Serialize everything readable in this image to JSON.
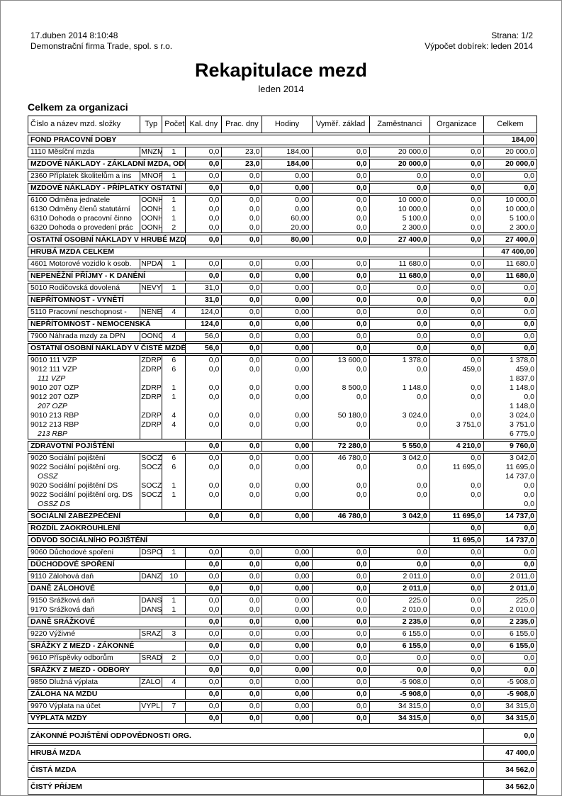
{
  "header": {
    "datetime": "17.duben 2014  8:10:48",
    "page_label": "Strana: 1/2",
    "company": "Demonstrační firma Trade, spol. s r.o.",
    "calc_label": "Výpočet dobírek: leden 2014"
  },
  "title": "Rekapitulace mezd",
  "subtitle": "leden 2014",
  "section_title": "Celkem za organizaci",
  "table": {
    "columns": [
      "Číslo a název mzd. složky",
      "Typ",
      "Počet",
      "Kal. dny",
      "Prac. dny",
      "Hodiny",
      "Vyměř. základ",
      "Zaměstnanci",
      "Organizace",
      "Celkem"
    ],
    "blocks": [
      {
        "type": "section",
        "name": "FOND PRACOVNÍ DOBY",
        "organizace": "",
        "celkem": "184,00"
      },
      {
        "type": "detail",
        "rows": [
          {
            "style": "normal",
            "cells": [
              "1110 Měsíční mzda",
              "MNZM",
              "1",
              "0,0",
              "23,0",
              "184,00",
              "0,0",
              "20 000,0",
              "0,0",
              "20 000,0"
            ]
          }
        ]
      },
      {
        "type": "total",
        "name": "MZDOVÉ NÁKLADY - ZÁKLADNÍ MZDA, ODPR",
        "values": [
          "0,0",
          "23,0",
          "184,00",
          "0,0",
          "20 000,0",
          "0,0",
          "20 000,0"
        ]
      },
      {
        "type": "detail",
        "rows": [
          {
            "style": "normal",
            "cells": [
              "2360 Příplatek školitelům a ins",
              "MNOP",
              "1",
              "0,0",
              "0,0",
              "0,00",
              "0,0",
              "0,0",
              "0,0",
              "0,0"
            ]
          }
        ]
      },
      {
        "type": "total",
        "name": "MZDOVÉ NÁKLADY - PŘÍPLATKY OSTATNÍ",
        "values": [
          "0,0",
          "0,0",
          "0,00",
          "0,0",
          "0,0",
          "0,0",
          "0,0"
        ]
      },
      {
        "type": "detail",
        "rows": [
          {
            "style": "normal",
            "cells": [
              "6100 Odměna jednatele",
              "OONH",
              "1",
              "0,0",
              "0,0",
              "0,00",
              "0,0",
              "10 000,0",
              "0,0",
              "10 000,0"
            ]
          },
          {
            "style": "normal",
            "cells": [
              "6130 Odměny členů statutární",
              "OONH",
              "1",
              "0,0",
              "0,0",
              "0,00",
              "0,0",
              "10 000,0",
              "0,0",
              "10 000,0"
            ]
          },
          {
            "style": "normal",
            "cells": [
              "6310 Dohoda o pracovní činno",
              "OONH",
              "1",
              "0,0",
              "0,0",
              "60,00",
              "0,0",
              "5 100,0",
              "0,0",
              "5 100,0"
            ]
          },
          {
            "style": "normal",
            "cells": [
              "6320 Dohoda o provedení prác",
              "OONH",
              "2",
              "0,0",
              "0,0",
              "20,00",
              "0,0",
              "2 300,0",
              "0,0",
              "2 300,0"
            ]
          }
        ]
      },
      {
        "type": "total",
        "name": "OSTATNÍ OSOBNÍ NÁKLADY V HRUBÉ MZDĚ",
        "values": [
          "0,0",
          "0,0",
          "80,00",
          "0,0",
          "27 400,0",
          "0,0",
          "27 400,0"
        ]
      },
      {
        "type": "section",
        "name": "HRUBÁ MZDA CELKEM",
        "organizace": "",
        "celkem": "47 400,00"
      },
      {
        "type": "detail",
        "rows": [
          {
            "style": "normal",
            "cells": [
              "4601 Motorové vozidlo k osob.",
              "NPDA",
              "1",
              "0,0",
              "0,0",
              "0,00",
              "0,0",
              "11 680,0",
              "0,0",
              "11 680,0"
            ]
          }
        ]
      },
      {
        "type": "total",
        "name": "NEPENĚŽNÍ PŘÍJMY - K DANĚNÍ",
        "values": [
          "0,0",
          "0,0",
          "0,00",
          "0,0",
          "11 680,0",
          "0,0",
          "11 680,0"
        ]
      },
      {
        "type": "detail",
        "rows": [
          {
            "style": "normal",
            "cells": [
              "5010 Rodičovská dovolená",
              "NEVY",
              "1",
              "31,0",
              "0,0",
              "0,00",
              "0,0",
              "0,0",
              "0,0",
              "0,0"
            ]
          }
        ]
      },
      {
        "type": "total",
        "name": "NEPŘÍTOMNOST - VYNĚTÍ",
        "values": [
          "31,0",
          "0,0",
          "0,00",
          "0,0",
          "0,0",
          "0,0",
          "0,0"
        ]
      },
      {
        "type": "detail",
        "rows": [
          {
            "style": "normal",
            "cells": [
              "5110 Pracovní neschopnost - ",
              "NENE",
              "4",
              "124,0",
              "0,0",
              "0,00",
              "0,0",
              "0,0",
              "0,0",
              "0,0"
            ]
          }
        ]
      },
      {
        "type": "total",
        "name": "NEPŘÍTOMNOST - NEMOCENSKÁ",
        "values": [
          "124,0",
          "0,0",
          "0,00",
          "0,0",
          "0,0",
          "0,0",
          "0,0"
        ]
      },
      {
        "type": "detail",
        "rows": [
          {
            "style": "normal",
            "cells": [
              "7900 Náhrada mzdy za DPN",
              "OONC",
              "4",
              "56,0",
              "0,0",
              "0,00",
              "0,0",
              "0,0",
              "0,0",
              "0,0"
            ]
          }
        ]
      },
      {
        "type": "total",
        "name": "OSTATNÍ OSOBNÍ NÁKLADY V ČISTÉ MZDĚ",
        "values": [
          "56,0",
          "0,0",
          "0,00",
          "0,0",
          "0,0",
          "0,0",
          "0,0"
        ]
      },
      {
        "type": "detail",
        "rows": [
          {
            "style": "normal",
            "cells": [
              "9010 111 VZP",
              "ZDRP",
              "6",
              "0,0",
              "0,0",
              "0,00",
              "13 600,0",
              "1 378,0",
              "0,0",
              "1 378,0"
            ]
          },
          {
            "style": "normal",
            "cells": [
              "9012 111 VZP",
              "ZDRP",
              "6",
              "0,0",
              "0,0",
              "0,00",
              "0,0",
              "0,0",
              "459,0",
              "459,0"
            ]
          },
          {
            "style": "italic",
            "cells": [
              "111 VZP",
              "",
              "",
              "",
              "",
              "",
              "",
              "",
              "",
              "1 837,0"
            ]
          },
          {
            "style": "normal",
            "cells": [
              "9010 207 OZP",
              "ZDRP",
              "1",
              "0,0",
              "0,0",
              "0,00",
              "8 500,0",
              "1 148,0",
              "0,0",
              "1 148,0"
            ]
          },
          {
            "style": "normal",
            "cells": [
              "9012 207 OZP",
              "ZDRP",
              "1",
              "0,0",
              "0,0",
              "0,00",
              "0,0",
              "0,0",
              "0,0",
              "0,0"
            ]
          },
          {
            "style": "italic",
            "cells": [
              "207 OZP",
              "",
              "",
              "",
              "",
              "",
              "",
              "",
              "",
              "1 148,0"
            ]
          },
          {
            "style": "normal",
            "cells": [
              "9010 213 RBP",
              "ZDRP",
              "4",
              "0,0",
              "0,0",
              "0,00",
              "50 180,0",
              "3 024,0",
              "0,0",
              "3 024,0"
            ]
          },
          {
            "style": "normal",
            "cells": [
              "9012 213 RBP",
              "ZDRP",
              "4",
              "0,0",
              "0,0",
              "0,00",
              "0,0",
              "0,0",
              "3 751,0",
              "3 751,0"
            ]
          },
          {
            "style": "italic",
            "cells": [
              "213 RBP",
              "",
              "",
              "",
              "",
              "",
              "",
              "",
              "",
              "6 775,0"
            ]
          }
        ]
      },
      {
        "type": "total",
        "name": "ZDRAVOTNÍ POJIŠTĚNÍ",
        "values": [
          "0,0",
          "0,0",
          "0,00",
          "72 280,0",
          "5 550,0",
          "4 210,0",
          "9 760,0"
        ]
      },
      {
        "type": "detail",
        "rows": [
          {
            "style": "normal",
            "cells": [
              "9020 Sociální pojištění",
              "SOCZ",
              "6",
              "0,0",
              "0,0",
              "0,00",
              "46 780,0",
              "3 042,0",
              "0,0",
              "3 042,0"
            ]
          },
          {
            "style": "normal",
            "cells": [
              "9022 Sociální pojištění org.",
              "SOCZ",
              "6",
              "0,0",
              "0,0",
              "0,00",
              "0,0",
              "0,0",
              "11 695,0",
              "11 695,0"
            ]
          },
          {
            "style": "italic",
            "cells": [
              "OSSZ",
              "",
              "",
              "",
              "",
              "",
              "",
              "",
              "",
              "14 737,0"
            ]
          },
          {
            "style": "normal",
            "cells": [
              "9020 Sociální pojištění DS",
              "SOCZ",
              "1",
              "0,0",
              "0,0",
              "0,00",
              "0,0",
              "0,0",
              "0,0",
              "0,0"
            ]
          },
          {
            "style": "normal",
            "cells": [
              "9022 Sociální pojištění org. DS",
              "SOCZ",
              "1",
              "0,0",
              "0,0",
              "0,00",
              "0,0",
              "0,0",
              "0,0",
              "0,0"
            ]
          },
          {
            "style": "italic",
            "cells": [
              "OSSZ DS",
              "",
              "",
              "",
              "",
              "",
              "",
              "",
              "",
              "0,0"
            ]
          }
        ]
      },
      {
        "type": "total",
        "name": "SOCIÁLNÍ ZABEZPEČENÍ",
        "values": [
          "0,0",
          "0,0",
          "0,00",
          "46 780,0",
          "3 042,0",
          "11 695,0",
          "14 737,0"
        ]
      },
      {
        "type": "section",
        "name": "ROZDÍL ZAOKROUHLENÍ",
        "organizace": "0,0",
        "celkem": "0,0"
      },
      {
        "type": "section",
        "name": "ODVOD SOCIÁLNÍHO POJIŠTĚNÍ",
        "organizace": "11 695,0",
        "celkem": "14 737,0"
      },
      {
        "type": "detail",
        "rows": [
          {
            "style": "normal",
            "cells": [
              "9060 Důchodové spoření",
              "DSPO",
              "1",
              "0,0",
              "0,0",
              "0,00",
              "0,0",
              "0,0",
              "0,0",
              "0,0"
            ]
          }
        ]
      },
      {
        "type": "total",
        "name": "DŮCHODOVÉ SPOŘENÍ",
        "values": [
          "0,0",
          "0,0",
          "0,00",
          "0,0",
          "0,0",
          "0,0",
          "0,0"
        ]
      },
      {
        "type": "detail",
        "rows": [
          {
            "style": "normal",
            "cells": [
              "9110 Zálohová daň",
              "DANZ",
              "10",
              "0,0",
              "0,0",
              "0,00",
              "0,0",
              "2 011,0",
              "0,0",
              "2 011,0"
            ]
          }
        ]
      },
      {
        "type": "total",
        "name": "DANĚ ZÁLOHOVÉ",
        "values": [
          "0,0",
          "0,0",
          "0,00",
          "0,0",
          "2 011,0",
          "0,0",
          "2 011,0"
        ]
      },
      {
        "type": "detail",
        "rows": [
          {
            "style": "normal",
            "cells": [
              "9150 Srážková daň",
              "DANS",
              "1",
              "0,0",
              "0,0",
              "0,00",
              "0,0",
              "225,0",
              "0,0",
              "225,0"
            ]
          },
          {
            "style": "normal",
            "cells": [
              "9170 Srážková daň",
              "DANS",
              "1",
              "0,0",
              "0,0",
              "0,00",
              "0,0",
              "2 010,0",
              "0,0",
              "2 010,0"
            ]
          }
        ]
      },
      {
        "type": "total",
        "name": "DANĚ SRÁŽKOVÉ",
        "values": [
          "0,0",
          "0,0",
          "0,00",
          "0,0",
          "2 235,0",
          "0,0",
          "2 235,0"
        ]
      },
      {
        "type": "detail",
        "rows": [
          {
            "style": "normal",
            "cells": [
              "9220 Výživné",
              "SRAZ",
              "3",
              "0,0",
              "0,0",
              "0,00",
              "0,0",
              "6 155,0",
              "0,0",
              "6 155,0"
            ]
          }
        ]
      },
      {
        "type": "total",
        "name": "SRÁŽKY Z MEZD - ZÁKONNÉ",
        "values": [
          "0,0",
          "0,0",
          "0,00",
          "0,0",
          "6 155,0",
          "0,0",
          "6 155,0"
        ]
      },
      {
        "type": "detail",
        "rows": [
          {
            "style": "normal",
            "cells": [
              "9610 Příspěvky odborům",
              "SRAD",
              "2",
              "0,0",
              "0,0",
              "0,00",
              "0,0",
              "0,0",
              "0,0",
              "0,0"
            ]
          }
        ]
      },
      {
        "type": "total",
        "name": "SRÁŽKY Z MEZD - ODBORY",
        "values": [
          "0,0",
          "0,0",
          "0,00",
          "0,0",
          "0,0",
          "0,0",
          "0,0"
        ]
      },
      {
        "type": "detail",
        "rows": [
          {
            "style": "normal",
            "cells": [
              "9850 Dlužná výplata",
              "ZALO",
              "4",
              "0,0",
              "0,0",
              "0,00",
              "0,0",
              "-5 908,0",
              "0,0",
              "-5 908,0"
            ]
          }
        ]
      },
      {
        "type": "total",
        "name": "ZÁLOHA NA MZDU",
        "values": [
          "0,0",
          "0,0",
          "0,00",
          "0,0",
          "-5 908,0",
          "0,0",
          "-5 908,0"
        ]
      },
      {
        "type": "detail",
        "rows": [
          {
            "style": "normal",
            "cells": [
              "9970 Výplata na účet",
              "VYPL",
              "7",
              "0,0",
              "0,0",
              "0,00",
              "0,0",
              "34 315,0",
              "0,0",
              "34 315,0"
            ]
          }
        ]
      },
      {
        "type": "total",
        "name": "VÝPLATA MZDY",
        "values": [
          "0,0",
          "0,0",
          "0,00",
          "0,0",
          "34 315,0",
          "0,0",
          "34 315,0"
        ]
      },
      {
        "type": "spacer"
      },
      {
        "type": "summary",
        "name": "ZÁKONNÉ POJIŠTĚNÍ ODPOVĚDNOSTI ORG.",
        "celkem": "0,0"
      },
      {
        "type": "summary",
        "name": "HRUBÁ MZDA",
        "celkem": "47 400,0"
      },
      {
        "type": "summary",
        "name": "ČISTÁ MZDA",
        "celkem": "34 562,0"
      },
      {
        "type": "summary",
        "name": "ČISTÝ PŘÍJEM",
        "celkem": "34 562,0"
      }
    ]
  }
}
